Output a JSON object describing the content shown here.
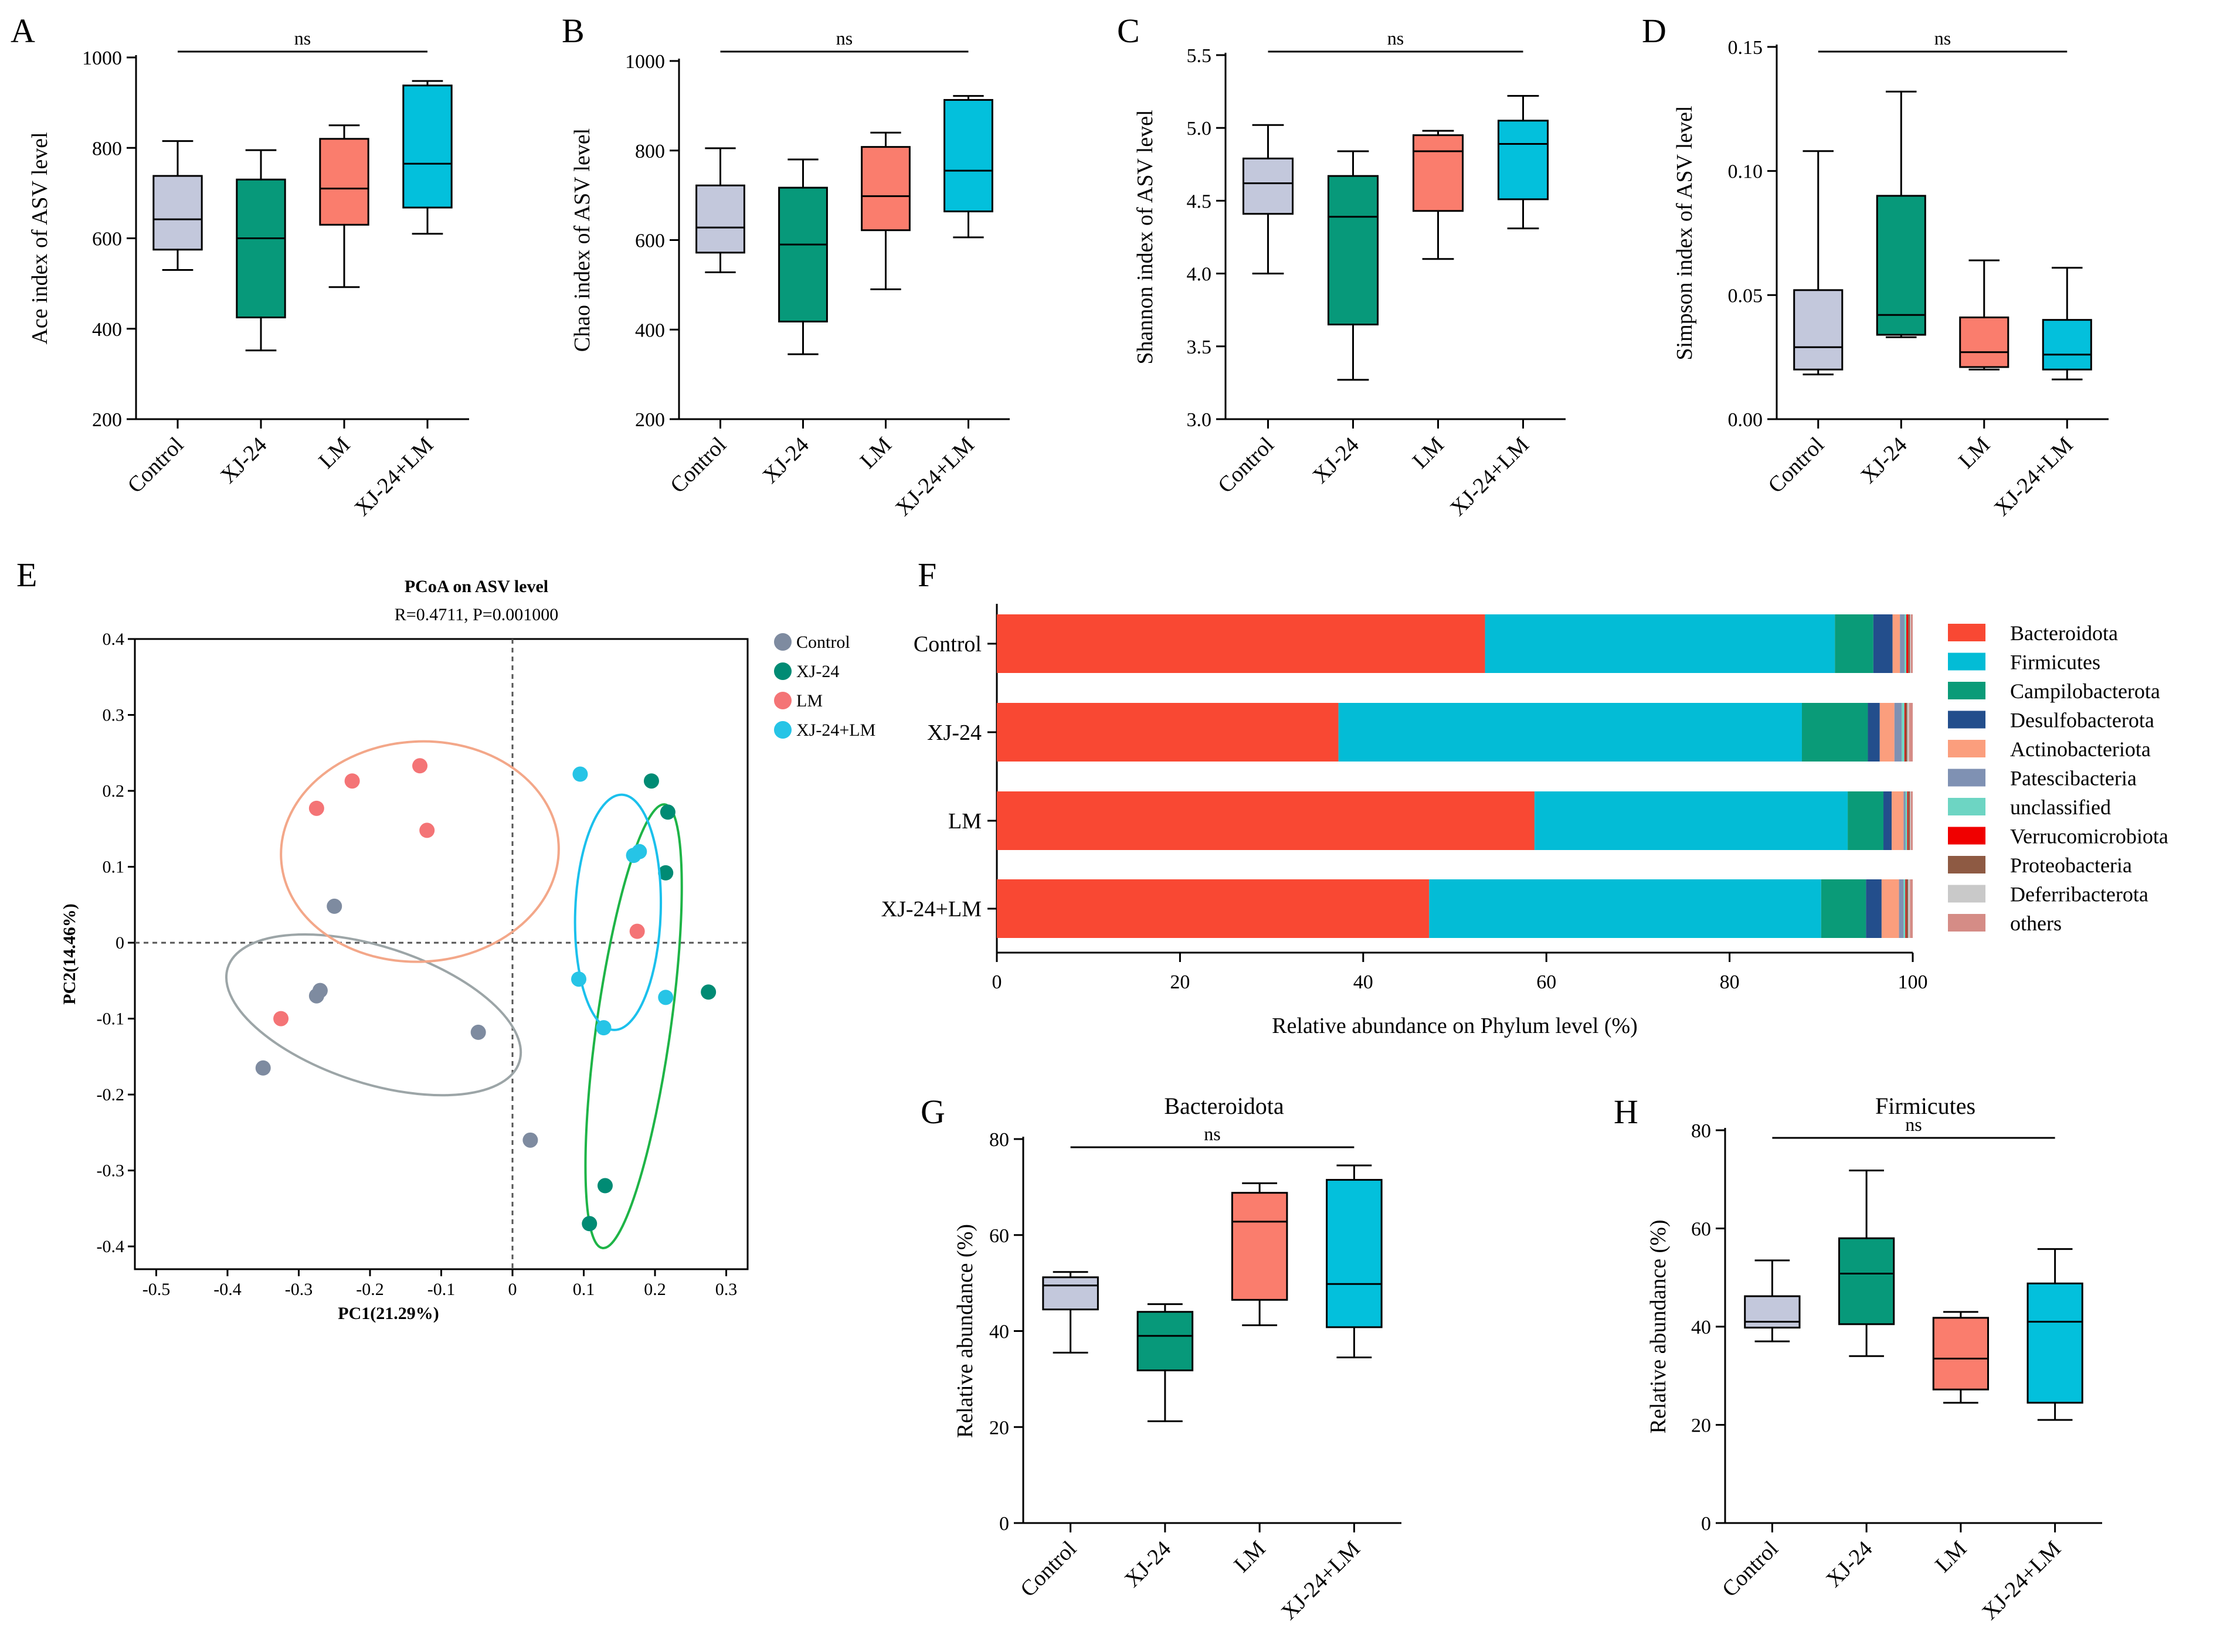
{
  "colors": {
    "Control": "#c3c8dc",
    "XJ-24": "#07997a",
    "LM": "#fa7d6d",
    "XJ-24+LM": "#03c0dc",
    "pcoa_Control": "#7e8ba0",
    "pcoa_XJ-24": "#008b74",
    "pcoa_LM": "#f47476",
    "pcoa_XJ-24+LM": "#26c4e6",
    "ellipse_Control": "#9ca5a7",
    "ellipse_XJ-24": "#1eb447",
    "ellipse_LM": "#f3a789",
    "ellipse_XJ-24+LM": "#1bc0ec"
  },
  "chart_data": [
    {
      "id": "A",
      "type": "box",
      "panel_label": "A",
      "ylabel": "Ace index of ASV level",
      "significance": "ns",
      "ylim": [
        200,
        1000
      ],
      "yticks": [
        "200",
        "400",
        "600",
        "800",
        "1000"
      ],
      "ytick_values": [
        200,
        400,
        600,
        800,
        1000
      ],
      "categories": [
        "Control",
        "XJ-24",
        "LM",
        "XJ-24+LM"
      ],
      "boxes": [
        {
          "min": 530,
          "q1": 575,
          "median": 642,
          "q3": 738,
          "max": 815
        },
        {
          "min": 352,
          "q1": 425,
          "median": 600,
          "q3": 730,
          "max": 795
        },
        {
          "min": 492,
          "q1": 630,
          "median": 710,
          "q3": 820,
          "max": 850
        },
        {
          "min": 610,
          "q1": 668,
          "median": 765,
          "q3": 938,
          "max": 948
        }
      ]
    },
    {
      "id": "B",
      "type": "box",
      "panel_label": "B",
      "ylabel": "Chao index of ASV level",
      "significance": "ns",
      "ylim": [
        200,
        1000
      ],
      "yticks": [
        "200",
        "400",
        "600",
        "800",
        "1000"
      ],
      "ytick_values": [
        200,
        400,
        600,
        800,
        1000
      ],
      "categories": [
        "Control",
        "XJ-24",
        "LM",
        "XJ-24+LM"
      ],
      "boxes": [
        {
          "min": 528,
          "q1": 572,
          "median": 628,
          "q3": 722,
          "max": 805
        },
        {
          "min": 345,
          "q1": 418,
          "median": 590,
          "q3": 717,
          "max": 780
        },
        {
          "min": 490,
          "q1": 622,
          "median": 698,
          "q3": 808,
          "max": 840
        },
        {
          "min": 606,
          "q1": 664,
          "median": 755,
          "q3": 913,
          "max": 922
        }
      ]
    },
    {
      "id": "C",
      "type": "box",
      "panel_label": "C",
      "ylabel": "Shannon index of ASV level",
      "significance": "ns",
      "ylim": [
        3.0,
        5.5
      ],
      "yticks": [
        "3.0",
        "3.5",
        "4.0",
        "4.5",
        "5.0",
        "5.5"
      ],
      "ytick_values": [
        3.0,
        3.5,
        4.0,
        4.5,
        5.0,
        5.5
      ],
      "categories": [
        "Control",
        "XJ-24",
        "LM",
        "XJ-24+LM"
      ],
      "boxes": [
        {
          "min": 4.0,
          "q1": 4.41,
          "median": 4.62,
          "q3": 4.79,
          "max": 5.02
        },
        {
          "min": 3.27,
          "q1": 3.65,
          "median": 4.39,
          "q3": 4.67,
          "max": 4.84
        },
        {
          "min": 4.1,
          "q1": 4.43,
          "median": 4.84,
          "q3": 4.95,
          "max": 4.98
        },
        {
          "min": 4.31,
          "q1": 4.51,
          "median": 4.89,
          "q3": 5.05,
          "max": 5.22
        }
      ]
    },
    {
      "id": "D",
      "type": "box",
      "panel_label": "D",
      "ylabel": "Simpson index of ASV level",
      "significance": "ns",
      "ylim": [
        0.0,
        0.15
      ],
      "yticks": [
        "0.00",
        "0.05",
        "0.10",
        "0.15"
      ],
      "ytick_values": [
        0.0,
        0.05,
        0.1,
        0.15
      ],
      "categories": [
        "Control",
        "XJ-24",
        "LM",
        "XJ-24+LM"
      ],
      "boxes": [
        {
          "min": 0.018,
          "q1": 0.02,
          "median": 0.029,
          "q3": 0.052,
          "max": 0.108
        },
        {
          "min": 0.033,
          "q1": 0.034,
          "median": 0.042,
          "q3": 0.09,
          "max": 0.132
        },
        {
          "min": 0.02,
          "q1": 0.021,
          "median": 0.027,
          "q3": 0.041,
          "max": 0.064
        },
        {
          "min": 0.016,
          "q1": 0.02,
          "median": 0.026,
          "q3": 0.04,
          "max": 0.061
        }
      ]
    },
    {
      "id": "E",
      "type": "scatter",
      "panel_label": "E",
      "title": "PCoA on ASV level",
      "subtitle": "R=0.4711, P=0.001000",
      "xlabel": "PC1(21.29%)",
      "ylabel": "PC2(14.46%)",
      "xlim": [
        -0.53,
        0.33
      ],
      "ylim": [
        -0.43,
        0.4
      ],
      "xticks": [
        "-0.5",
        "-0.4",
        "-0.3",
        "-0.2",
        "-0.1",
        "0",
        "0.1",
        "0.2",
        "0.3"
      ],
      "xtick_values": [
        -0.5,
        -0.4,
        -0.3,
        -0.2,
        -0.1,
        0,
        0.1,
        0.2,
        0.3
      ],
      "yticks": [
        "-0.4",
        "-0.3",
        "-0.2",
        "-0.1",
        "0",
        "0.1",
        "0.2",
        "0.3",
        "0.4"
      ],
      "ytick_values": [
        -0.4,
        -0.3,
        -0.2,
        -0.1,
        0,
        0.1,
        0.2,
        0.3,
        0.4
      ],
      "legend": [
        "Control",
        "XJ-24",
        "LM",
        "XJ-24+LM"
      ],
      "series": [
        {
          "name": "Control",
          "points": [
            [
              -0.25,
              0.048
            ],
            [
              -0.27,
              -0.063
            ],
            [
              -0.275,
              -0.07
            ],
            [
              -0.35,
              -0.165
            ],
            [
              -0.048,
              -0.118
            ],
            [
              0.025,
              -0.26
            ]
          ],
          "ellipse": {
            "cx": -0.195,
            "cy": -0.095,
            "rx": 0.215,
            "ry": 0.09,
            "angle": 18
          }
        },
        {
          "name": "XJ-24",
          "points": [
            [
              0.195,
              0.213
            ],
            [
              0.218,
              0.172
            ],
            [
              0.215,
              0.092
            ],
            [
              0.275,
              -0.065
            ],
            [
              0.13,
              -0.32
            ],
            [
              0.108,
              -0.37
            ]
          ],
          "ellipse": {
            "cx": 0.17,
            "cy": -0.11,
            "rx": 0.052,
            "ry": 0.295,
            "angle": 8
          }
        },
        {
          "name": "LM",
          "points": [
            [
              -0.225,
              0.213
            ],
            [
              -0.275,
              0.177
            ],
            [
              -0.13,
              0.233
            ],
            [
              -0.12,
              0.148
            ],
            [
              -0.325,
              -0.1
            ],
            [
              0.175,
              0.015
            ]
          ],
          "ellipse": {
            "cx": -0.13,
            "cy": 0.12,
            "rx": 0.195,
            "ry": 0.145,
            "angle": -3
          }
        },
        {
          "name": "XJ-24+LM",
          "points": [
            [
              0.095,
              0.222
            ],
            [
              0.17,
              0.115
            ],
            [
              0.178,
              0.12
            ],
            [
              0.093,
              -0.048
            ],
            [
              0.128,
              -0.112
            ],
            [
              0.215,
              -0.072
            ]
          ],
          "ellipse": {
            "cx": 0.148,
            "cy": 0.04,
            "rx": 0.06,
            "ry": 0.155,
            "angle": 2
          }
        }
      ]
    },
    {
      "id": "F",
      "type": "stacked-bar-horizontal",
      "panel_label": "F",
      "xlabel": "Relative abundance on Phylum level (%)",
      "xlim": [
        0,
        100
      ],
      "xticks": [
        "0",
        "20",
        "40",
        "60",
        "80",
        "100"
      ],
      "xtick_values": [
        0,
        20,
        40,
        60,
        80,
        100
      ],
      "categories": [
        "Control",
        "XJ-24",
        "LM",
        "XJ-24+LM"
      ],
      "series": [
        {
          "name": "Bacteroidota",
          "color": "#f94833",
          "values": [
            53.3,
            37.3,
            58.7,
            47.2
          ]
        },
        {
          "name": "Firmicutes",
          "color": "#03bcd6",
          "values": [
            38.2,
            50.6,
            34.2,
            42.8
          ]
        },
        {
          "name": "Campilobacterota",
          "color": "#0a9b78",
          "values": [
            4.2,
            7.2,
            3.9,
            4.9
          ]
        },
        {
          "name": "Desulfobacterota",
          "color": "#234e8c",
          "values": [
            2.1,
            1.3,
            0.9,
            1.7
          ]
        },
        {
          "name": "Actinobacteriota",
          "color": "#fb9e7d",
          "values": [
            0.8,
            1.6,
            1.3,
            1.9
          ]
        },
        {
          "name": "Patescibacteria",
          "color": "#7f91b3",
          "values": [
            0.5,
            0.8,
            0.2,
            0.5
          ]
        },
        {
          "name": "unclassified",
          "color": "#6dd5c3",
          "values": [
            0.2,
            0.3,
            0.2,
            0.2
          ]
        },
        {
          "name": "Verrucomicrobiota",
          "color": "#f00000",
          "values": [
            0.2,
            0.1,
            0.1,
            0.1
          ]
        },
        {
          "name": "Proteobacteria",
          "color": "#8e5a43",
          "values": [
            0.2,
            0.2,
            0.2,
            0.2
          ]
        },
        {
          "name": "Deferribacterota",
          "color": "#c9c9c9",
          "values": [
            0.1,
            0.2,
            0.1,
            0.2
          ]
        },
        {
          "name": "others",
          "color": "#d58c86",
          "values": [
            0.2,
            0.4,
            0.2,
            0.3
          ]
        }
      ]
    },
    {
      "id": "G",
      "type": "box",
      "panel_label": "G",
      "title": "Bacteroidota",
      "ylabel": "Relative abundance (%)",
      "significance": "ns",
      "ylim": [
        0,
        80
      ],
      "yticks": [
        "0",
        "20",
        "40",
        "60",
        "80"
      ],
      "ytick_values": [
        0,
        20,
        40,
        60,
        80
      ],
      "categories": [
        "Control",
        "XJ-24",
        "LM",
        "XJ-24+LM"
      ],
      "boxes": [
        {
          "min": 35.5,
          "q1": 44.5,
          "median": 49.5,
          "q3": 51.2,
          "max": 52.3
        },
        {
          "min": 21.2,
          "q1": 31.8,
          "median": 39.0,
          "q3": 44.0,
          "max": 45.6
        },
        {
          "min": 41.2,
          "q1": 46.5,
          "median": 62.8,
          "q3": 68.8,
          "max": 70.8
        },
        {
          "min": 34.5,
          "q1": 40.8,
          "median": 49.8,
          "q3": 71.5,
          "max": 74.5
        }
      ]
    },
    {
      "id": "H",
      "type": "box",
      "panel_label": "H",
      "title": "Firmicutes",
      "ylabel": "Relative abundance (%)",
      "significance": "ns",
      "ylim": [
        0,
        80
      ],
      "yticks": [
        "0",
        "20",
        "40",
        "60",
        "80"
      ],
      "ytick_values": [
        0,
        20,
        40,
        60,
        80
      ],
      "categories": [
        "Control",
        "XJ-24",
        "LM",
        "XJ-24+LM"
      ],
      "boxes": [
        {
          "min": 37.0,
          "q1": 39.8,
          "median": 41.0,
          "q3": 46.2,
          "max": 53.5
        },
        {
          "min": 34.0,
          "q1": 40.5,
          "median": 50.8,
          "q3": 58.0,
          "max": 71.8
        },
        {
          "min": 24.5,
          "q1": 27.2,
          "median": 33.5,
          "q3": 41.8,
          "max": 43.0
        },
        {
          "min": 21.0,
          "q1": 24.5,
          "median": 41.0,
          "q3": 48.8,
          "max": 55.8
        }
      ]
    }
  ]
}
